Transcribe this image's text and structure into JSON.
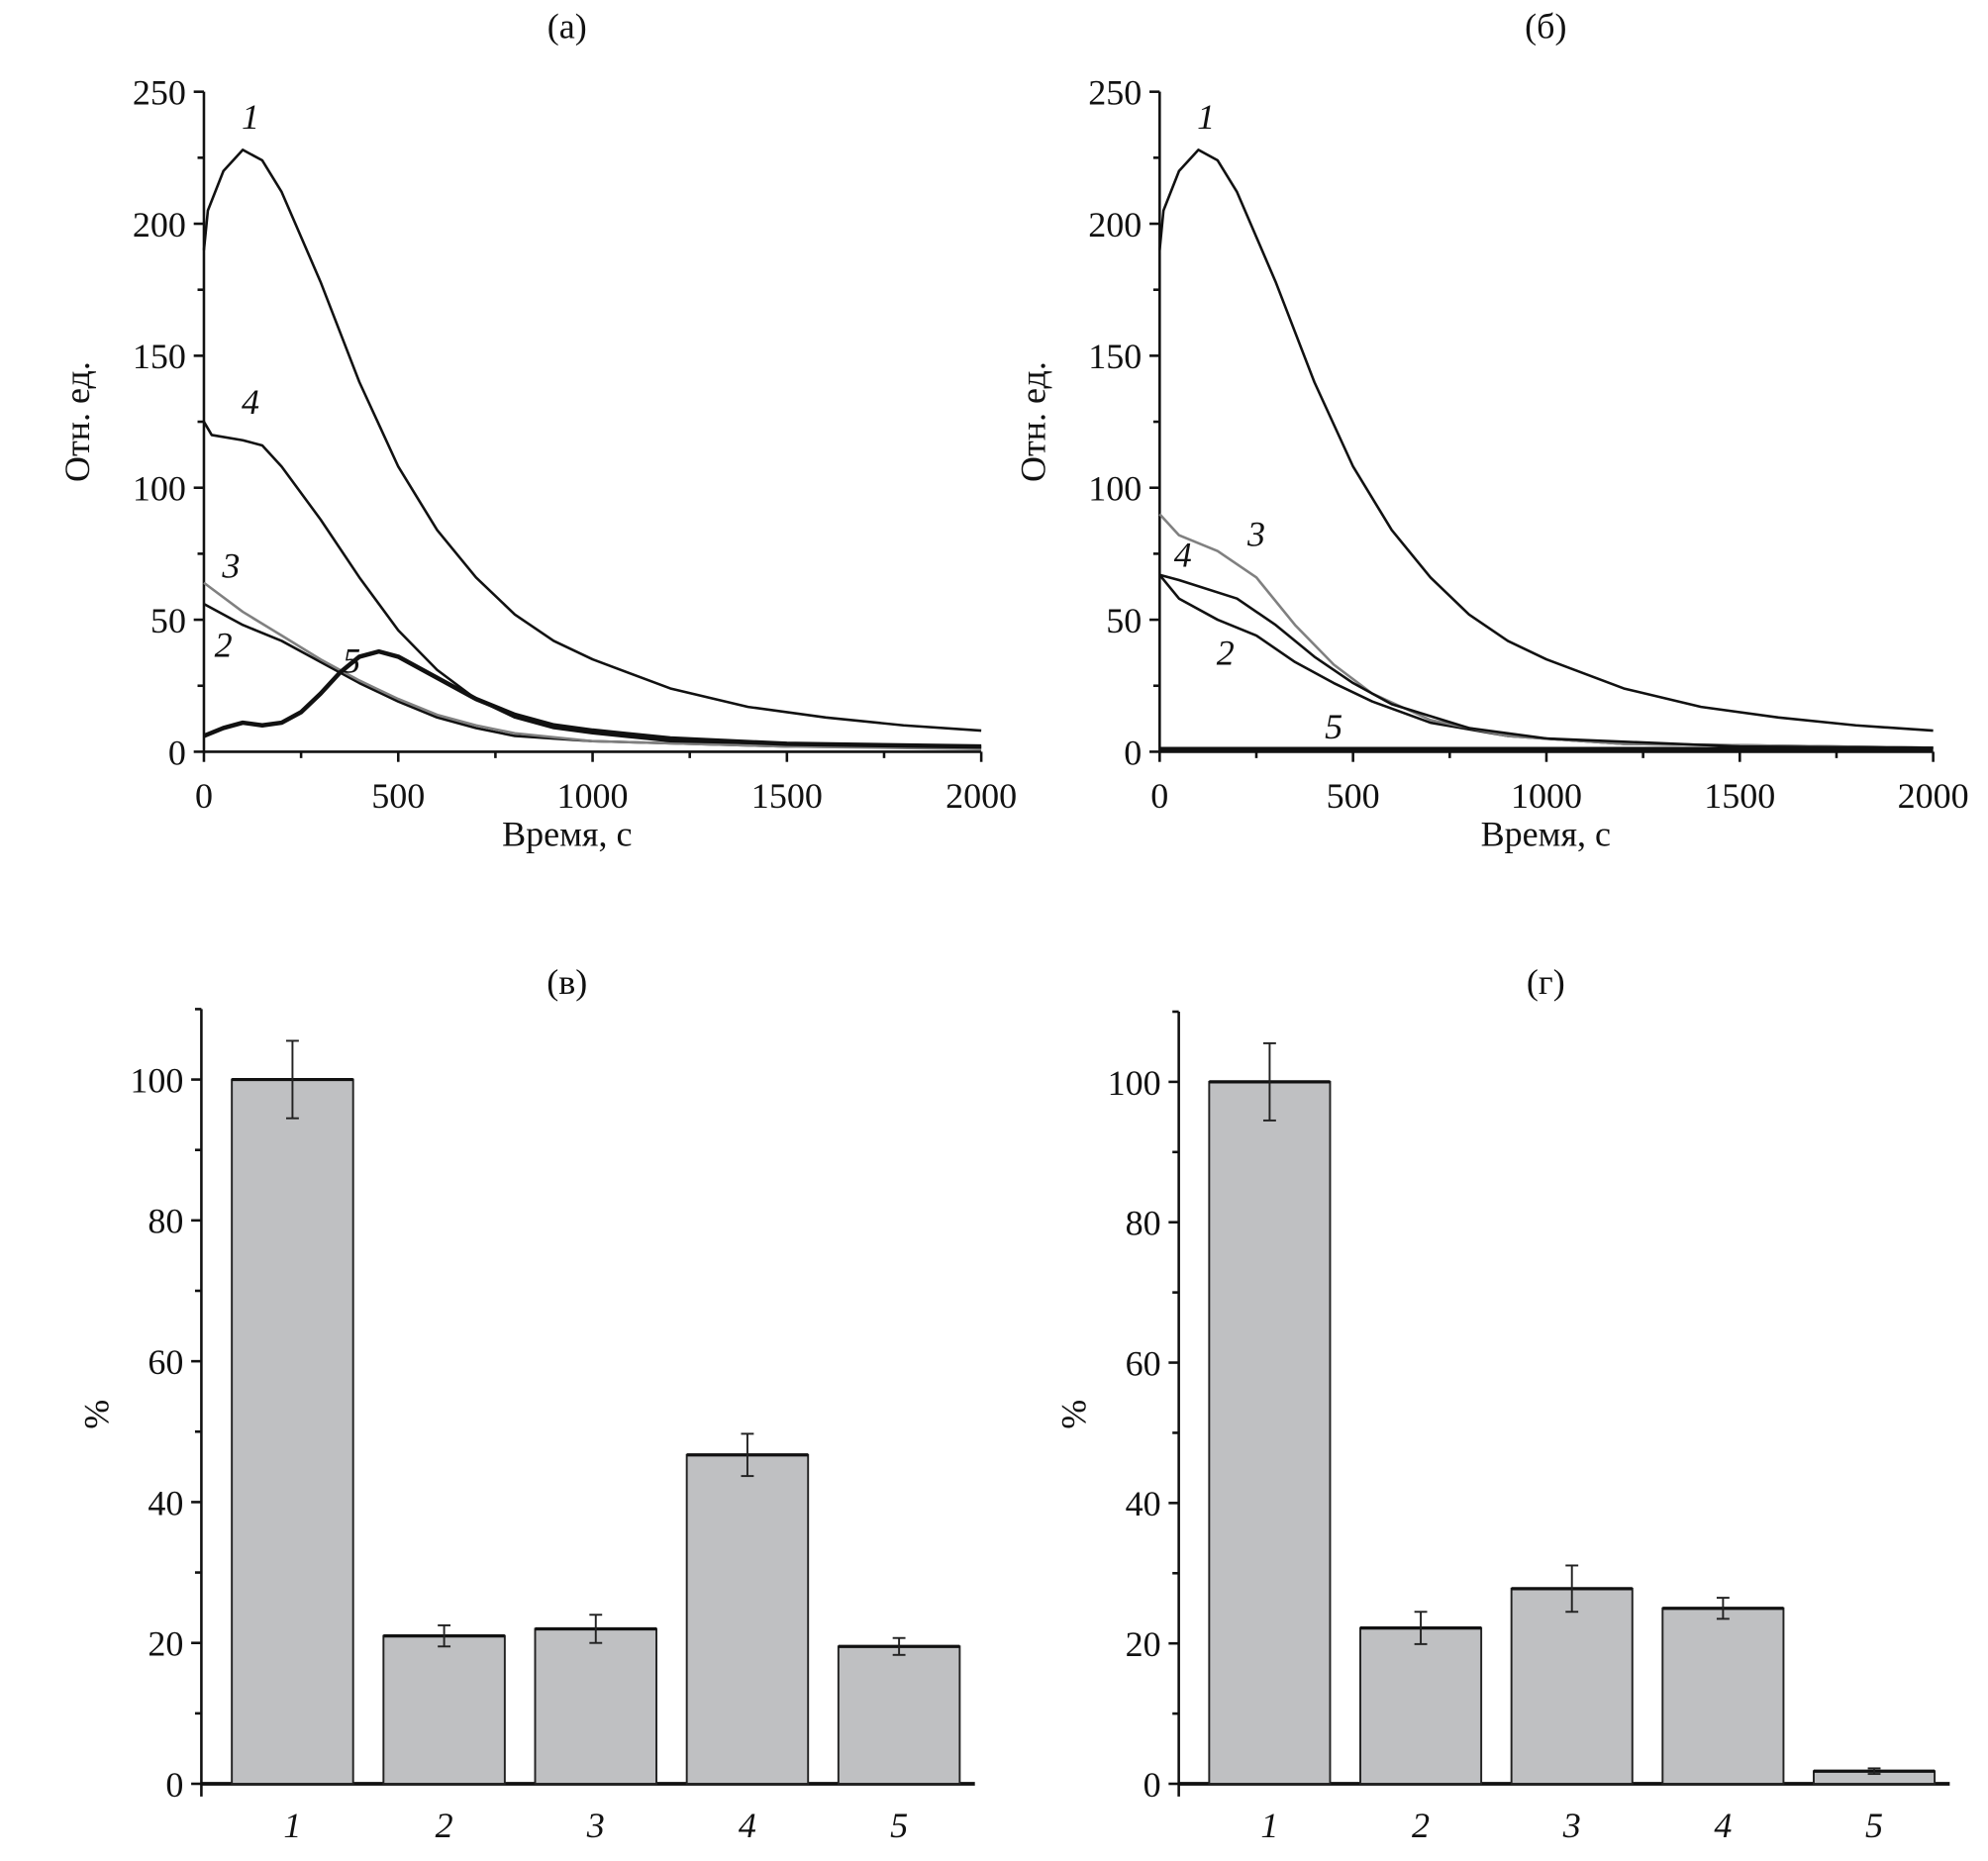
{
  "chart_data": [
    {
      "panel": "(а)",
      "type": "line",
      "xlabel": "Время, с",
      "ylabel": "Отн. ед.",
      "xlim": [
        0,
        2000
      ],
      "ylim": [
        0,
        250
      ],
      "xticks": [
        0,
        500,
        1000,
        1500,
        2000
      ],
      "yticks": [
        0,
        50,
        100,
        150,
        200,
        250
      ],
      "grid": false,
      "series": [
        {
          "name": "1",
          "color": "#111111",
          "x": [
            0,
            10,
            50,
            100,
            150,
            200,
            300,
            400,
            500,
            600,
            700,
            800,
            900,
            1000,
            1200,
            1400,
            1600,
            1800,
            2000
          ],
          "y": [
            190,
            205,
            220,
            228,
            224,
            212,
            178,
            140,
            108,
            84,
            66,
            52,
            42,
            35,
            24,
            17,
            13,
            10,
            8
          ]
        },
        {
          "name": "2",
          "color": "#111111",
          "x": [
            0,
            100,
            200,
            300,
            400,
            500,
            600,
            700,
            800,
            1000,
            1500,
            2000
          ],
          "y": [
            56,
            48,
            42,
            34,
            26,
            19,
            13,
            9,
            6,
            4,
            2,
            1.5
          ]
        },
        {
          "name": "3",
          "color": "#808080",
          "x": [
            0,
            100,
            200,
            300,
            400,
            500,
            600,
            700,
            800,
            1000,
            1500,
            2000
          ],
          "y": [
            64,
            53,
            44,
            35,
            27,
            20,
            14,
            10,
            7,
            4,
            2,
            1
          ]
        },
        {
          "name": "4",
          "color": "#111111",
          "x": [
            0,
            20,
            100,
            150,
            200,
            300,
            400,
            500,
            600,
            700,
            800,
            900,
            1000,
            1200,
            1500,
            2000
          ],
          "y": [
            125,
            120,
            118,
            116,
            108,
            88,
            66,
            46,
            31,
            20,
            13,
            9,
            7,
            4,
            3,
            2
          ]
        },
        {
          "name": "5",
          "color": "#111111",
          "x": [
            0,
            50,
            100,
            150,
            200,
            250,
            300,
            350,
            400,
            450,
            500,
            600,
            700,
            800,
            900,
            1000,
            1200,
            1500,
            2000
          ],
          "y": [
            6,
            9,
            11,
            10,
            11,
            15,
            22,
            30,
            36,
            38,
            36,
            28,
            20,
            14,
            10,
            8,
            5,
            3,
            2
          ]
        }
      ]
    },
    {
      "panel": "(б)",
      "type": "line",
      "xlabel": "Время, с",
      "ylabel": "Отн. ед.",
      "xlim": [
        0,
        2000
      ],
      "ylim": [
        0,
        250
      ],
      "xticks": [
        0,
        500,
        1000,
        1500,
        2000
      ],
      "yticks": [
        0,
        50,
        100,
        150,
        200,
        250
      ],
      "grid": false,
      "series": [
        {
          "name": "1",
          "color": "#111111",
          "x": [
            0,
            10,
            50,
            100,
            150,
            200,
            300,
            400,
            500,
            600,
            700,
            800,
            900,
            1000,
            1200,
            1400,
            1600,
            1800,
            2000
          ],
          "y": [
            190,
            205,
            220,
            228,
            224,
            212,
            178,
            140,
            108,
            84,
            66,
            52,
            42,
            35,
            24,
            17,
            13,
            10,
            8
          ]
        },
        {
          "name": "2",
          "color": "#111111",
          "x": [
            0,
            50,
            150,
            250,
            350,
            450,
            550,
            700,
            900,
            1200,
            2000
          ],
          "y": [
            67,
            58,
            50,
            44,
            34,
            26,
            19,
            11,
            6,
            3,
            1.5
          ]
        },
        {
          "name": "3",
          "color": "#808080",
          "x": [
            0,
            50,
            150,
            250,
            350,
            450,
            550,
            700,
            900,
            1200,
            2000
          ],
          "y": [
            90,
            82,
            76,
            66,
            48,
            33,
            22,
            12,
            6,
            3,
            1.5
          ]
        },
        {
          "name": "4",
          "color": "#111111",
          "x": [
            0,
            50,
            200,
            300,
            400,
            500,
            600,
            800,
            1000,
            1500,
            2000
          ],
          "y": [
            67,
            65,
            58,
            48,
            36,
            26,
            18,
            9,
            5,
            2,
            1.5
          ]
        },
        {
          "name": "5",
          "color": "#111111",
          "x": [
            0,
            500,
            1000,
            1500,
            2000
          ],
          "y": [
            1,
            1,
            1,
            1,
            1
          ]
        }
      ]
    },
    {
      "panel": "(в)",
      "type": "bar",
      "ylabel": "%",
      "categories": [
        "1",
        "2",
        "3",
        "4",
        "5"
      ],
      "values": [
        100,
        21,
        22,
        46.7,
        19.5
      ],
      "errors": [
        5.5,
        1.5,
        2,
        3,
        1.2
      ],
      "ylim": [
        0,
        110
      ],
      "yticks": [
        0,
        20,
        40,
        60,
        80,
        100
      ],
      "bar_color": "#bfc0c2",
      "grid": false
    },
    {
      "panel": "(г)",
      "type": "bar",
      "ylabel": "%",
      "categories": [
        "1",
        "2",
        "3",
        "4",
        "5"
      ],
      "values": [
        100,
        22.2,
        27.8,
        25,
        1.8
      ],
      "errors": [
        5.5,
        2.3,
        3.3,
        1.5,
        0.4
      ],
      "ylim": [
        0,
        110
      ],
      "yticks": [
        0,
        20,
        40,
        60,
        80,
        100
      ],
      "bar_color": "#bfc0c2",
      "grid": false
    }
  ]
}
